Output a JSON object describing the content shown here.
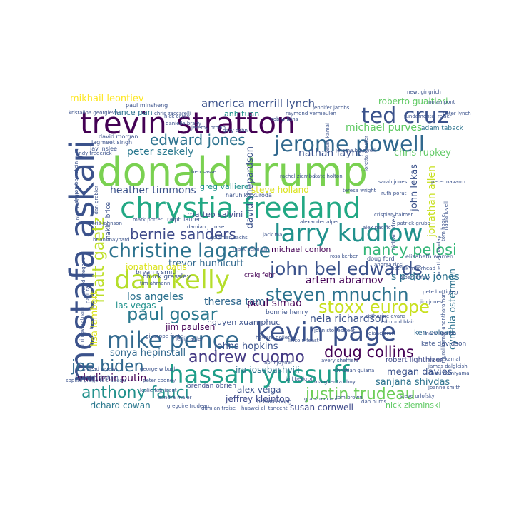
{
  "palette": {
    "c0": "#440154",
    "c1": "#3b528b",
    "c2": "#2c728e",
    "c3": "#21918c",
    "c4": "#28ae80",
    "c5": "#5ec962",
    "c6": "#addc30",
    "c7": "#dbe31e"
  },
  "words": {
    "donald_trump": {
      "text": "donald trump",
      "color": "#7ad151"
    },
    "trevin_stratton": {
      "text": "trevin stratton",
      "color": "#440154"
    },
    "mostafa_askari": {
      "text": "mostafa askari",
      "color": "#3b528b"
    },
    "chrystia_freeland": {
      "text": "chrystia freeland",
      "color": "#22a884"
    },
    "larry_kudlow": {
      "text": "larry kudlow",
      "color": "#21918c"
    },
    "kevin_page": {
      "text": "kevin page",
      "color": "#3b528b"
    },
    "hassan_yussuff": {
      "text": "hassan yussuff",
      "color": "#1f9e89"
    },
    "mike_pence": {
      "text": "mike pence",
      "color": "#31688e"
    },
    "dan_kelly": {
      "text": "dan kelly",
      "color": "#b5de2b"
    },
    "jerome_powell": {
      "text": "jerome powell",
      "color": "#31688e"
    },
    "ted_cruz": {
      "text": "ted cruz",
      "color": "#3b528b"
    },
    "christine_lagarde": {
      "text": "christine lagarde",
      "color": "#2c728e"
    },
    "john_bel_edwards": {
      "text": "john bel edwards",
      "color": "#3b528b"
    },
    "steven_mnuchin": {
      "text": "steven mnuchin",
      "color": "#2c728e"
    },
    "stoxx_europe": {
      "text": "stoxx europe",
      "color": "#c8e020"
    },
    "matt_gaetz": {
      "text": "matt gaetz",
      "color": "#bddf26"
    },
    "bernie_sanders": {
      "text": "bernie sanders",
      "color": "#3e4a89"
    },
    "nancy_pelosi": {
      "text": "nancy pelosi",
      "color": "#35b779"
    },
    "paul_gosar": {
      "text": "paul gosar",
      "color": "#2a788e"
    },
    "andrew_cuomo": {
      "text": "andrew cuomo",
      "color": "#443983"
    },
    "doug_collins": {
      "text": "doug collins",
      "color": "#440154"
    },
    "joe_biden": {
      "text": "joe biden",
      "color": "#31688e"
    },
    "anthony_fauci": {
      "text": "anthony fauci",
      "color": "#21918c"
    },
    "justin_trudeau": {
      "text": "justin trudeau",
      "color": "#6ece58"
    },
    "edward_jones": {
      "text": "edward jones",
      "color": "#2c728e"
    },
    "america_merrill_lynch": {
      "text": "america merrill lynch",
      "color": "#3b528b"
    },
    "mikhail_leontiev": {
      "text": "mikhail leontiev",
      "color": "#fde725"
    },
    "michael_purves": {
      "text": "michael purves",
      "color": "#5ec962"
    },
    "peter_szekely": {
      "text": "peter szekely",
      "color": "#2a788e"
    },
    "heather_timmons": {
      "text": "heather timmons",
      "color": "#3b528b"
    },
    "greg_valliere": {
      "text": "greg valliere",
      "color": "#21918c"
    },
    "matteo_salvini": {
      "text": "matteo salvini",
      "color": "#3e4a89"
    },
    "nathan_layne": {
      "text": "nathan layne",
      "color": "#3b528b"
    },
    "chris_rupkey": {
      "text": "chris rupkey",
      "color": "#5ec962"
    },
    "steve_holland": {
      "text": "steve holland",
      "color": "#dbe31e"
    },
    "david_shepardson": {
      "text": "david shepardson",
      "color": "#3b528b"
    },
    "jonathan_allen": {
      "text": "jonathan allen",
      "color": "#c8e020"
    },
    "john_lekas": {
      "text": "john lekas",
      "color": "#3b528b"
    },
    "roberto_gualtieri": {
      "text": "roberto gualtieri",
      "color": "#5ec962"
    },
    "trevor_hunnicutt": {
      "text": "trevor hunnicutt",
      "color": "#31688e"
    },
    "artem_abramov": {
      "text": "artem abramov",
      "color": "#440154"
    },
    "sp_dow_jones": {
      "text": "s p dow jones",
      "color": "#2c728e"
    },
    "los_angeles": {
      "text": "los angeles",
      "color": "#2c728e"
    },
    "theresa_tam": {
      "text": "theresa tam",
      "color": "#31688e"
    },
    "paul_simao": {
      "text": "paul simao",
      "color": "#440154"
    },
    "nela_richardson": {
      "text": "nela richardson",
      "color": "#3b528b"
    },
    "las_vegas": {
      "text": "las vegas",
      "color": "#21918c"
    },
    "lisa_lambert": {
      "text": "lisa lambert",
      "color": "#dbe31e"
    },
    "jim_paulsen": {
      "text": "jim paulsen",
      "color": "#440154"
    },
    "nguyen_xuan_phuc": {
      "text": "nguyen xuan phuc",
      "color": "#3b528b"
    },
    "sonya_hepinstall": {
      "text": "sonya hepinstall",
      "color": "#31688e"
    },
    "vladimir_putin": {
      "text": "vladimir putin",
      "color": "#440154"
    },
    "johns_hopkins": {
      "text": "johns hopkins",
      "color": "#3b528b"
    },
    "ira_iosebashvili": {
      "text": "ira iosebashvili",
      "color": "#2c728e"
    },
    "jeffrey_kleintop": {
      "text": "jeffrey kleintop",
      "color": "#3e4a89"
    },
    "alex_veiga": {
      "text": "alex veiga",
      "color": "#3b528b"
    },
    "megan_davies": {
      "text": "megan davies",
      "color": "#3b528b"
    },
    "sanjana_shivdas": {
      "text": "sanjana shivdas",
      "color": "#2c728e"
    },
    "richard_cowan": {
      "text": "richard cowan",
      "color": "#2a788e"
    },
    "susan_cornwell": {
      "text": "susan cornwell",
      "color": "#3e4a89"
    },
    "nick_zieminski": {
      "text": "nick zieminski",
      "color": "#5ec962"
    },
    "cynthia_osterman": {
      "text": "cynthia osterman",
      "color": "#2c728e"
    },
    "jonathan_oatis": {
      "text": "jonathan oatis",
      "color": "#dbe31e"
    },
    "bryan_r_smith": {
      "text": "bryan r smith",
      "color": "#3b528b"
    },
    "ken_polcari": {
      "text": "ken polcari",
      "color": "#31688e"
    },
    "robert_lighthizer": {
      "text": "robert lighthizer",
      "color": "#3e4a89"
    },
    "kate_davidson": {
      "text": "kate davidson",
      "color": "#3b528b"
    },
    "anh_tuan": {
      "text": "anh tuan",
      "color": "#21918c"
    },
    "lance_pan": {
      "text": "lance pan",
      "color": "#2c728e"
    },
    "david_morgan": {
      "text": "david morgan",
      "color": "#3b528b"
    },
    "jagmeet_singh": {
      "text": "jagmeet singh",
      "color": "#3b528b"
    },
    "jay_inslee": {
      "text": "jay inslee",
      "color": "#3b528b"
    },
    "adam_taback": {
      "text": "adam taback",
      "color": "#2c728e"
    },
    "paul_minsheng": {
      "text": "paul minsheng",
      "color": "#3b528b"
    },
    "newt_gingrich": {
      "text": "newt gingrich",
      "color": "#3b528b"
    },
    "michael_conlon": {
      "text": "michael conlon",
      "color": "#440154"
    },
    "craig_fehr": {
      "text": "craig fehr",
      "color": "#440154"
    },
    "ralph_lauren": {
      "text": "ralph lauren",
      "color": "#3b528b"
    },
    "damian_j_troise": {
      "text": "damian j troise",
      "color": "#3b528b"
    },
    "brendan_obrien": {
      "text": "brendan obrien",
      "color": "#3e4a89"
    },
    "chuck_grassley": {
      "text": "chuck grassley",
      "color": "#3b528b"
    },
    "teresa_wright": {
      "text": "teresa wright",
      "color": "#3b528b"
    },
    "elizabeth_warren": {
      "text": "elizabeth warren",
      "color": "#3b528b"
    },
    "doug_ford": {
      "text": "doug ford",
      "color": "#3b528b"
    },
    "bonnie_henry": {
      "text": "bonnie henry",
      "color": "#3b528b"
    },
    "april_joyner": {
      "text": "april joyner",
      "color": "#3b528b"
    },
    "alexander_alper": {
      "text": "alexander alper",
      "color": "#3b528b"
    },
    "ross_kerber": {
      "text": "ross kerber",
      "color": "#3b528b"
    },
    "mark_potter": {
      "text": "mark potter",
      "color": "#3b528b"
    },
    "brian_maynard": {
      "text": "brian maynard",
      "color": "#3b528b"
    },
    "makini_brice": {
      "text": "makini brice",
      "color": "#3b528b"
    },
    "dan_grebler": {
      "text": "dan grebler",
      "color": "#3b528b"
    },
    "richard_drew": {
      "text": "richard drew",
      "color": "#3b528b"
    },
    "jerome_h_powell": {
      "text": "jerome h powell",
      "color": "#3b528b"
    },
    "sinead_carew": {
      "text": "sinead carew",
      "color": "#3b528b"
    },
    "gregoire_trudeau": {
      "text": "gregoire trudeau",
      "color": "#3b528b"
    },
    "damian_troise": {
      "text": "damian troise",
      "color": "#3b528b"
    },
    "huawei_ali_tancent": {
      "text": "huawei ali tancent",
      "color": "#3b528b"
    },
    "giuseppe_fonte": {
      "text": "giuseppe fonte",
      "color": "#3b528b"
    },
    "boris_johnson": {
      "text": "boris johnson",
      "color": "#3b528b"
    },
    "sophie_gregoire_trudeau": {
      "text": "sophie gregoire trudeau",
      "color": "#3b528b"
    },
    "raleigh_durham": {
      "text": "raleigh durham",
      "color": "#3b528b"
    },
    "peter_navarro": {
      "text": "peter navarro",
      "color": "#3b528b"
    },
    "nadia_lovell": {
      "text": "nadia lovell",
      "color": "#3b528b"
    },
    "piper_jaffray": {
      "text": "piper jaffray",
      "color": "#3b528b"
    },
    "patrick_moorhead": {
      "text": "patrick moorhead",
      "color": "#3b528b"
    },
    "leslie_adler": {
      "text": "leslie adler",
      "color": "#3b528b"
    },
    "goldman_sachs": {
      "text": "goldman sachs",
      "color": "#3b528b"
    },
    "jack_ma": {
      "text": "jack ma",
      "color": "#3b528b"
    },
    "kristalina_georgieva": {
      "text": "kristalina georgieva",
      "color": "#3b528b"
    },
    "haruhiko_kuroda": {
      "text": "haruhiko kuroda",
      "color": "#3b528b"
    },
    "peter_lynch": {
      "text": "peter lynch",
      "color": "#3b528b"
    },
    "sharon_bernstein": {
      "text": "sharon bernstein",
      "color": "#3b528b"
    },
    "nolan_pont": {
      "text": "nolan pont",
      "color": "#3b528b"
    },
    "chris_zaccarelli": {
      "text": "chris zaccarelli",
      "color": "#3b528b"
    },
    "george_w_bush": {
      "text": "george w bush",
      "color": "#3b528b"
    },
    "nick_carey": {
      "text": "nick carey",
      "color": "#3b528b"
    },
    "pete_buttigieg": {
      "text": "pete buttigieg",
      "color": "#3b528b"
    },
    "jim_jones": {
      "text": "jim jones",
      "color": "#3b528b"
    },
    "mark_lipsitch": {
      "text": "mark lipsitch",
      "color": "#3b528b"
    },
    "joanne_smith": {
      "text": "joanne smith",
      "color": "#3b528b"
    },
    "jennifer_jacobs": {
      "text": "jennifer jacobs",
      "color": "#3b528b"
    },
    "crispian_balmer": {
      "text": "crispian balmer",
      "color": "#3b528b"
    },
    "andy_frederick": {
      "text": "andy frederick",
      "color": "#3b528b"
    },
    "yunus_kamal": {
      "text": "yunus kamal",
      "color": "#3b528b"
    },
    "christian_guiana": {
      "text": "christian guiana",
      "color": "#3b528b"
    },
    "avery_sheffield": {
      "text": "avery sheffield",
      "color": "#3b528b"
    },
    "patrick_grubb": {
      "text": "patrick grubb",
      "color": "#3b528b"
    },
    "alex_pacific": {
      "text": "alex pacific",
      "color": "#3b528b"
    },
    "andrea_ricci": {
      "text": "andrea ricci",
      "color": "#3b528b"
    },
    "fundamental_reiser": {
      "text": "fundamental reiser",
      "color": "#3b528b"
    },
    "ketan_kamal": {
      "text": "ketan kamal",
      "color": "#3b528b"
    },
    "loretta_mester": {
      "text": "loretta mester",
      "color": "#3b528b"
    },
    "raymond_vermeulen": {
      "text": "raymond vermeulen",
      "color": "#3b528b"
    },
    "rob_wilkins": {
      "text": "rob wilkins",
      "color": "#3b528b"
    },
    "danielle_brady": {
      "text": "danielle brady",
      "color": "#3b528b"
    },
    "jeremy_brown": {
      "text": "jeremy brown",
      "color": "#3b528b"
    },
    "gary_cohn": {
      "text": "gary cohn",
      "color": "#3b528b"
    },
    "ben_sasse": {
      "text": "ben sasse",
      "color": "#3b528b"
    },
    "sarah_jones": {
      "text": "sarah jones",
      "color": "#3b528b"
    },
    "ruth_porat": {
      "text": "ruth porat",
      "color": "#3b528b"
    },
    "rachel_ziemba": {
      "text": "rachel ziemba",
      "color": "#3b528b"
    },
    "kate_holton": {
      "text": "kate holton",
      "color": "#3b528b"
    },
    "mark_heinrich": {
      "text": "mark heinrich",
      "color": "#3b528b"
    },
    "tim_ahmann": {
      "text": "tim ahmann",
      "color": "#3b528b"
    },
    "john_stonestreet": {
      "text": "john stonestreet",
      "color": "#3b528b"
    },
    "diane_craft": {
      "text": "diane craft",
      "color": "#3b528b"
    },
    "howard_goller": {
      "text": "howard goller",
      "color": "#3b528b"
    },
    "lincoln_feast": {
      "text": "lincoln feast",
      "color": "#3b528b"
    },
    "peter_cooney": {
      "text": "peter cooney",
      "color": "#3b528b"
    },
    "leslie_fabricant": {
      "text": "leslie fabricant",
      "color": "#3b528b"
    },
    "sandra_maler": {
      "text": "sandra maler",
      "color": "#3b528b"
    },
    "bill_berkrot": {
      "text": "bill berkrot",
      "color": "#3b528b"
    },
    "marguerita_choy": {
      "text": "marguerita choy",
      "color": "#3b528b"
    },
    "richard_chang": {
      "text": "richard chang",
      "color": "#3b528b"
    },
    "grant_mccool": {
      "text": "grant mccool",
      "color": "#3b528b"
    },
    "tom_brown": {
      "text": "tom brown",
      "color": "#3b528b"
    },
    "dan_burns": {
      "text": "dan burns",
      "color": "#3b528b"
    },
    "steve_orlofsky": {
      "text": "steve orlofsky",
      "color": "#3b528b"
    },
    "chizu_nomiyama": {
      "text": "chizu nomiyama",
      "color": "#3b528b"
    },
    "james_dalgleish": {
      "text": "james dalgleish",
      "color": "#3b528b"
    },
    "jonathan_landay": {
      "text": "jonathan landay",
      "color": "#3b528b"
    },
    "tom_hogue": {
      "text": "tom hogue",
      "color": "#3b528b"
    },
    "nick_macfie": {
      "text": "nick macfie",
      "color": "#3b528b"
    },
    "david_gregorio": {
      "text": "david gregorio",
      "color": "#3b528b"
    },
    "paul_tait": {
      "text": "paul tait",
      "color": "#3b528b"
    },
    "shri_navaratnam": {
      "text": "shri navaratnam",
      "color": "#3b528b"
    },
    "muralikumar_anantharaman": {
      "text": "muralikumar anantharaman",
      "color": "#3b528b"
    },
    "catherine_evans": {
      "text": "catherine evans",
      "color": "#3b528b"
    },
    "edmund_blair": {
      "text": "edmund blair",
      "color": "#3b528b"
    }
  }
}
